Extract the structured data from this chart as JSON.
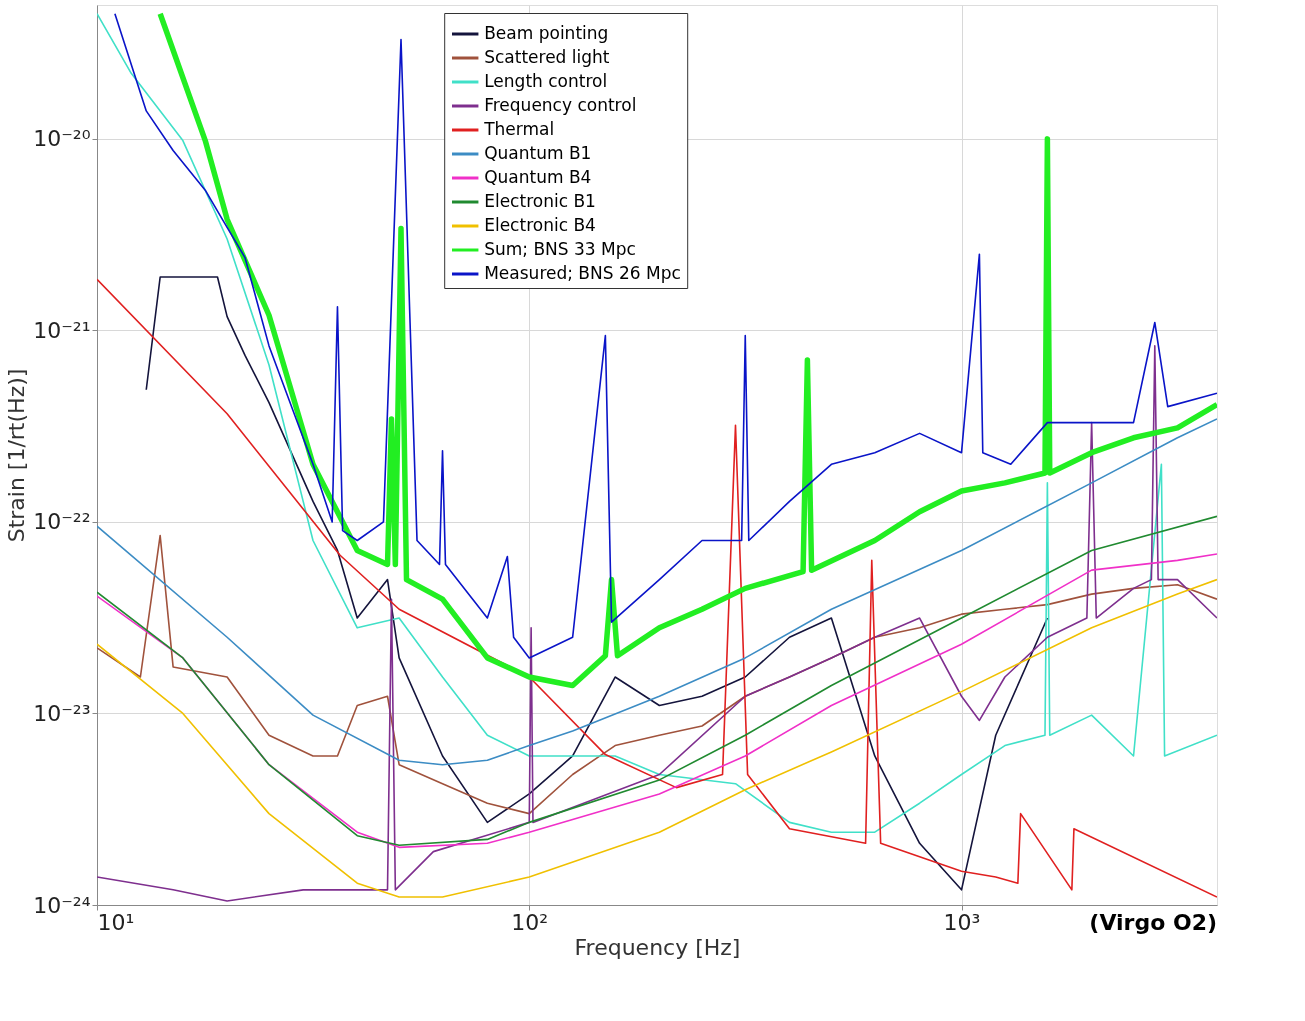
{
  "chart_data": {
    "type": "line",
    "xlabel": "Frequency [Hz]",
    "ylabel": "Strain [1/rt(Hz)]",
    "log": "xy",
    "grid": true,
    "legend": "top",
    "line_style": "solid",
    "marker": "none",
    "xlim": [
      10,
      3900
    ],
    "ylim": [
      1e-24,
      5e-20
    ],
    "xticks": [
      {
        "value": 10,
        "label": "10¹"
      },
      {
        "value": 100,
        "label": "10²"
      },
      {
        "value": 1000,
        "label": "10³"
      }
    ],
    "yticks": [
      {
        "value": 1e-24,
        "label": "10⁻²⁴"
      },
      {
        "value": 1e-23,
        "label": "10⁻²³"
      },
      {
        "value": 1e-22,
        "label": "10⁻²²"
      },
      {
        "value": 1e-21,
        "label": "10⁻²¹"
      },
      {
        "value": 1e-20,
        "label": "10⁻²⁰"
      }
    ],
    "annotations": [
      "(Virgo O2)"
    ],
    "series": [
      {
        "name": "Beam pointing",
        "color": "#14143c",
        "x": [
          13,
          14,
          17,
          19,
          20,
          22,
          25,
          31.6,
          36,
          40,
          47,
          50,
          63,
          80,
          100,
          126,
          158,
          200,
          251,
          316,
          400,
          500,
          630,
          800,
          1000,
          1200,
          1580
        ],
        "values": [
          4.9e-22,
          1.9e-21,
          1.9e-21,
          1.9e-21,
          1.18e-21,
          7.4e-22,
          4.2e-22,
          1.28e-22,
          7.1e-23,
          3.15e-23,
          5e-23,
          1.95e-23,
          6e-24,
          2.7e-24,
          3.8e-24,
          6e-24,
          1.55e-23,
          1.1e-23,
          1.23e-23,
          1.55e-23,
          2.5e-23,
          3.15e-23,
          6e-24,
          2.1e-24,
          1.2e-24,
          7.7e-24,
          3.15e-23
        ]
      },
      {
        "name": "Scattered light",
        "color": "#a0523c",
        "x": [
          10,
          12.6,
          14,
          15,
          20,
          25,
          31.6,
          36,
          40,
          47,
          50,
          63,
          80,
          100,
          126,
          158,
          200,
          251,
          316,
          400,
          500,
          630,
          800,
          1000,
          1260,
          1580,
          2000,
          2500,
          3160,
          3900
        ],
        "values": [
          2.2e-23,
          1.55e-23,
          8.5e-23,
          1.75e-23,
          1.55e-23,
          7.7e-24,
          6e-24,
          6e-24,
          1.1e-23,
          1.23e-23,
          5.4e-24,
          4.3e-24,
          3.4e-24,
          3e-24,
          4.8e-24,
          6.8e-24,
          7.7e-24,
          8.6e-24,
          1.23e-23,
          1.55e-23,
          1.95e-23,
          2.5e-23,
          2.8e-23,
          3.3e-23,
          3.5e-23,
          3.7e-23,
          4.2e-23,
          4.5e-23,
          4.7e-23,
          3.95e-23
        ]
      },
      {
        "name": "Length control",
        "color": "#40e0c8",
        "x": [
          10,
          12,
          15.8,
          20,
          25,
          31.6,
          40,
          50,
          63,
          80,
          100,
          158,
          200,
          300,
          400,
          500,
          630,
          800,
          1000,
          1260,
          1560,
          1580,
          1600,
          2000,
          2500,
          2900,
          2950,
          3900
        ],
        "values": [
          4.5e-20,
          2.2e-20,
          9.8e-21,
          3e-21,
          6.6e-22,
          8e-23,
          2.8e-23,
          3.15e-23,
          1.55e-23,
          7.7e-24,
          6e-24,
          6e-24,
          4.8e-24,
          4.3e-24,
          2.7e-24,
          2.4e-24,
          2.4e-24,
          3.4e-24,
          4.8e-24,
          6.8e-24,
          7.7e-24,
          1.6e-22,
          7.7e-24,
          9.8e-24,
          6e-24,
          2e-22,
          6e-24,
          7.7e-24
        ]
      },
      {
        "name": "Frequency control",
        "color": "#7e2f8e",
        "x": [
          10,
          15,
          20,
          30,
          47,
          48,
          49,
          60,
          100,
          101,
          102,
          200,
          316,
          400,
          500,
          630,
          800,
          1000,
          1100,
          1260,
          1580,
          1950,
          2000,
          2050,
          2500,
          2750,
          2800,
          2850,
          3160,
          3900
        ],
        "values": [
          1.4e-24,
          1.2e-24,
          1.05e-24,
          1.2e-24,
          1.2e-24,
          3.95e-23,
          1.2e-24,
          1.9e-24,
          2.7e-24,
          2.8e-23,
          2.7e-24,
          4.8e-24,
          1.23e-23,
          1.55e-23,
          1.95e-23,
          2.5e-23,
          3.15e-23,
          1.23e-23,
          9.2e-24,
          1.55e-23,
          2.5e-23,
          3.15e-23,
          3.3e-22,
          3.15e-23,
          4.5e-23,
          5e-23,
          8.3e-22,
          5e-23,
          5e-23,
          3.15e-23
        ]
      },
      {
        "name": "Thermal",
        "color": "#e02020",
        "x": [
          10,
          20,
          36.5,
          50,
          100,
          150,
          219,
          280,
          300,
          320,
          400,
          600,
          620,
          650,
          1000,
          1200,
          1350,
          1370,
          1800,
          1820,
          3900
        ],
        "values": [
          1.85e-21,
          3.67e-22,
          6.7e-23,
          3.5e-23,
          1.55e-23,
          6.1e-24,
          4.1e-24,
          4.8e-24,
          3.2e-22,
          4.8e-24,
          2.5e-24,
          2.1e-24,
          6.3e-23,
          2.1e-24,
          1.5e-24,
          1.4e-24,
          1.3e-24,
          3e-24,
          1.2e-24,
          2.5e-24,
          1.1e-24
        ]
      },
      {
        "name": "Quantum B1",
        "color": "#3c8cc4",
        "x": [
          10,
          20,
          31.6,
          50,
          63,
          80,
          100,
          126,
          200,
          316,
          500,
          1000,
          2000,
          3160,
          3900
        ],
        "values": [
          9.5e-23,
          2.5e-23,
          9.8e-24,
          5.7e-24,
          5.4e-24,
          5.7e-24,
          6.8e-24,
          8.1e-24,
          1.23e-23,
          1.95e-23,
          3.5e-23,
          7.1e-23,
          1.6e-22,
          2.75e-22,
          3.45e-22
        ]
      },
      {
        "name": "Quantum B4",
        "color": "#f030c8",
        "x": [
          10,
          15.8,
          25,
          40,
          50,
          80,
          100,
          200,
          316,
          500,
          1000,
          2000,
          3160,
          3900
        ],
        "values": [
          4.1e-23,
          1.95e-23,
          5.4e-24,
          2.4e-24,
          2e-24,
          2.1e-24,
          2.4e-24,
          3.8e-24,
          6e-24,
          1.1e-23,
          2.3e-23,
          5.6e-23,
          6.3e-23,
          6.8e-23
        ]
      },
      {
        "name": "Electronic B1",
        "color": "#208a30",
        "x": [
          10,
          15.8,
          25,
          40,
          50,
          80,
          100,
          200,
          316,
          500,
          1000,
          2000,
          3900
        ],
        "values": [
          4.3e-23,
          1.95e-23,
          5.4e-24,
          2.3e-24,
          2.05e-24,
          2.2e-24,
          2.7e-24,
          4.5e-24,
          7.7e-24,
          1.4e-23,
          3.15e-23,
          7.1e-23,
          1.07e-22
        ]
      },
      {
        "name": "Electronic B4",
        "color": "#f0c000",
        "x": [
          10,
          15.8,
          25,
          40,
          50,
          63,
          100,
          200,
          316,
          500,
          1000,
          2000,
          3160,
          3900
        ],
        "values": [
          2.3e-23,
          1e-23,
          3e-24,
          1.3e-24,
          1.1e-24,
          1.1e-24,
          1.4e-24,
          2.4e-24,
          4e-24,
          6.3e-24,
          1.3e-23,
          2.8e-23,
          4.2e-23,
          5e-23
        ]
      },
      {
        "name": "Sum; BNS 33 Mpc",
        "color": "#22ee22",
        "x": [
          14,
          17.8,
          20,
          25,
          31.6,
          40,
          47,
          48,
          49,
          50.5,
          52,
          63,
          80,
          100,
          126,
          150,
          155,
          160,
          200,
          251,
          316,
          430,
          440,
          450,
          630,
          800,
          1000,
          1260,
          1560,
          1580,
          1600,
          2000,
          2500,
          3160,
          3900
        ],
        "values": [
          4.5e-20,
          9.8e-21,
          3.8e-21,
          1.2e-21,
          2e-22,
          7.1e-23,
          6e-23,
          3.45e-22,
          6e-23,
          3.4e-21,
          5e-23,
          3.95e-23,
          1.95e-23,
          1.55e-23,
          1.4e-23,
          2e-23,
          5e-23,
          2e-23,
          2.8e-23,
          3.5e-23,
          4.5e-23,
          5.5e-23,
          7e-22,
          5.6e-23,
          8e-23,
          1.13e-22,
          1.45e-22,
          1.6e-22,
          1.8e-22,
          1e-20,
          1.8e-22,
          2.3e-22,
          2.75e-22,
          3.1e-22,
          4.1e-22
        ]
      },
      {
        "name": "Measured; BNS 26 Mpc",
        "color": "#0a14c8",
        "x": [
          11,
          13,
          15,
          17.8,
          19.5,
          22,
          25,
          31.6,
          35,
          36,
          37,
          40,
          46,
          50.5,
          55,
          62,
          63,
          64,
          80,
          89,
          92,
          100,
          126,
          150,
          155,
          200,
          251,
          310,
          316,
          322,
          400,
          500,
          630,
          800,
          1000,
          1100,
          1120,
          1300,
          1580,
          2000,
          2500,
          2800,
          3000,
          3900
        ],
        "values": [
          4.5e-20,
          1.4e-20,
          8.7e-21,
          5.4e-21,
          3.8e-21,
          2.4e-21,
          8.3e-22,
          2e-22,
          1e-22,
          1.33e-21,
          9e-23,
          8e-23,
          1e-22,
          3.3e-20,
          8e-23,
          6e-23,
          2.35e-22,
          6e-23,
          3.15e-23,
          6.6e-23,
          2.5e-23,
          1.95e-23,
          2.5e-23,
          9.4e-22,
          3e-23,
          5e-23,
          8e-23,
          8e-23,
          9.4e-22,
          8e-23,
          1.28e-22,
          2e-22,
          2.3e-22,
          2.9e-22,
          2.3e-22,
          2.5e-21,
          2.3e-22,
          2e-22,
          3.3e-22,
          3.3e-22,
          3.3e-22,
          1.1e-21,
          4e-22,
          4.7e-22
        ]
      }
    ]
  }
}
